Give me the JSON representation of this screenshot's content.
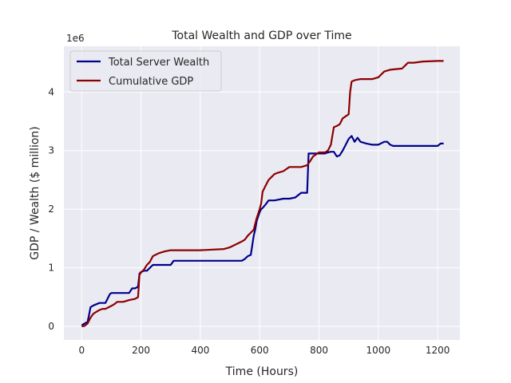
{
  "chart_data": {
    "type": "line",
    "title": "Total Wealth and GDP over Time",
    "xlabel": "Time (Hours)",
    "ylabel": "GDP / Wealth ($ million)",
    "y_offset_label": "1e6",
    "xlim": [
      -60,
      1275
    ],
    "ylim": [
      -0.23,
      4.78
    ],
    "x_ticks": [
      0,
      200,
      400,
      600,
      800,
      1000,
      1200
    ],
    "x_tick_labels": [
      "0",
      "200",
      "400",
      "600",
      "800",
      "1000",
      "1200"
    ],
    "y_ticks": [
      0,
      1,
      2,
      3,
      4
    ],
    "y_tick_labels": [
      "0",
      "1",
      "2",
      "3",
      "4"
    ],
    "grid": true,
    "legend_position": "top-left",
    "series": [
      {
        "name": "Total Server Wealth",
        "color": "#00008b",
        "x": [
          0,
          10,
          20,
          25,
          30,
          40,
          50,
          60,
          80,
          90,
          95,
          100,
          110,
          130,
          160,
          170,
          180,
          190,
          195,
          200,
          210,
          220,
          230,
          240,
          260,
          280,
          300,
          310,
          320,
          400,
          500,
          540,
          550,
          560,
          570,
          580,
          585,
          590,
          600,
          605,
          610,
          620,
          630,
          650,
          680,
          700,
          720,
          740,
          760,
          765,
          770,
          800,
          820,
          830,
          840,
          850,
          860,
          870,
          880,
          890,
          900,
          910,
          920,
          930,
          940,
          960,
          980,
          1000,
          1020,
          1030,
          1040,
          1050,
          1100,
          1150,
          1180,
          1200,
          1210,
          1220
        ],
        "y": [
          0.02,
          0.05,
          0.08,
          0.2,
          0.33,
          0.36,
          0.38,
          0.4,
          0.4,
          0.5,
          0.55,
          0.57,
          0.57,
          0.57,
          0.57,
          0.65,
          0.65,
          0.68,
          0.9,
          0.93,
          0.95,
          0.95,
          1.0,
          1.05,
          1.05,
          1.05,
          1.05,
          1.12,
          1.12,
          1.12,
          1.12,
          1.12,
          1.15,
          1.2,
          1.22,
          1.55,
          1.65,
          1.8,
          1.95,
          2.0,
          2.02,
          2.08,
          2.15,
          2.15,
          2.18,
          2.18,
          2.2,
          2.28,
          2.28,
          2.95,
          2.95,
          2.95,
          2.95,
          2.97,
          2.98,
          2.98,
          2.9,
          2.92,
          3.0,
          3.1,
          3.2,
          3.25,
          3.15,
          3.22,
          3.15,
          3.12,
          3.1,
          3.1,
          3.15,
          3.15,
          3.1,
          3.08,
          3.08,
          3.08,
          3.08,
          3.08,
          3.12,
          3.12
        ]
      },
      {
        "name": "Cumulative GDP",
        "color": "#8b0000",
        "x": [
          0,
          10,
          20,
          30,
          40,
          50,
          60,
          70,
          80,
          100,
          110,
          120,
          140,
          160,
          180,
          190,
          195,
          200,
          210,
          220,
          230,
          240,
          260,
          280,
          300,
          310,
          350,
          400,
          480,
          500,
          520,
          540,
          550,
          560,
          570,
          580,
          590,
          600,
          605,
          610,
          620,
          630,
          640,
          650,
          660,
          680,
          700,
          740,
          760,
          770,
          780,
          800,
          810,
          820,
          830,
          840,
          850,
          860,
          870,
          880,
          900,
          905,
          910,
          920,
          940,
          980,
          1000,
          1020,
          1040,
          1080,
          1100,
          1120,
          1150,
          1200,
          1220
        ],
        "y": [
          0.0,
          0.01,
          0.05,
          0.15,
          0.22,
          0.25,
          0.28,
          0.3,
          0.3,
          0.35,
          0.38,
          0.42,
          0.42,
          0.45,
          0.47,
          0.5,
          0.88,
          0.92,
          0.97,
          1.05,
          1.1,
          1.2,
          1.25,
          1.28,
          1.3,
          1.3,
          1.3,
          1.3,
          1.32,
          1.35,
          1.4,
          1.45,
          1.48,
          1.55,
          1.6,
          1.65,
          1.85,
          2.0,
          2.1,
          2.3,
          2.4,
          2.5,
          2.55,
          2.6,
          2.62,
          2.65,
          2.72,
          2.72,
          2.75,
          2.82,
          2.9,
          2.97,
          2.97,
          2.97,
          3.0,
          3.1,
          3.4,
          3.42,
          3.45,
          3.55,
          3.62,
          4.0,
          4.18,
          4.2,
          4.22,
          4.22,
          4.25,
          4.35,
          4.38,
          4.4,
          4.5,
          4.5,
          4.52,
          4.53,
          4.53
        ]
      }
    ]
  }
}
